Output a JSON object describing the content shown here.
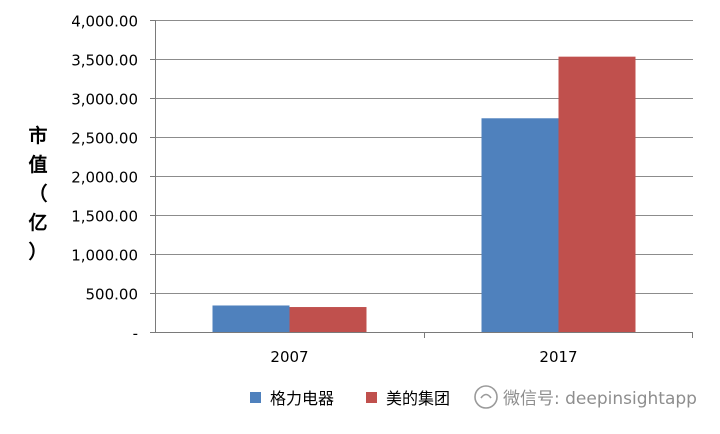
{
  "chart_data": {
    "type": "bar",
    "categories": [
      "2007",
      "2017"
    ],
    "series": [
      {
        "name": "格力电器",
        "values": [
          340,
          2740
        ],
        "color": "#4F81BD"
      },
      {
        "name": "美的集团",
        "values": [
          320,
          3530
        ],
        "color": "#C0504D"
      }
    ],
    "ylabel": "市值（亿）",
    "ylim": [
      0,
      4000
    ],
    "yticks": [
      0,
      500,
      1000,
      1500,
      2000,
      2500,
      3000,
      3500,
      4000
    ],
    "ytick_labels": [
      "-",
      "500.00",
      "1,000.00",
      "1,500.00",
      "2,000.00",
      "2,500.00",
      "3,000.00",
      "3,500.00",
      "4,000.00"
    ],
    "grid": true,
    "legend_position": "bottom"
  },
  "watermark": {
    "text": "微信号: deepinsightapp"
  }
}
